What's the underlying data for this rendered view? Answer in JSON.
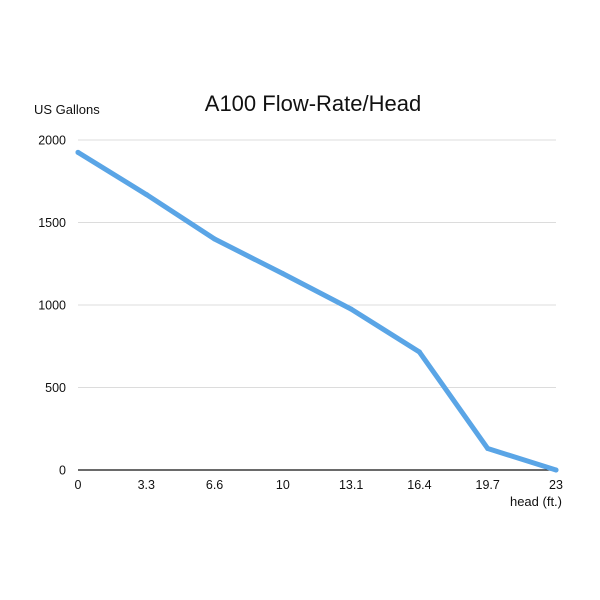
{
  "chart_data": {
    "type": "line",
    "title": "A100 Flow-Rate/Head",
    "ylabel": "US Gallons",
    "xlabel": "head (ft.)",
    "categories": [
      "0",
      "3.3",
      "6.6",
      "10",
      "13.1",
      "16.4",
      "19.7",
      "23"
    ],
    "series": [
      {
        "values": [
          1925,
          1670,
          1400,
          1190,
          975,
          715,
          130,
          0
        ]
      }
    ],
    "ylim": [
      0,
      2000
    ],
    "yticks": [
      0,
      500,
      1000,
      1500,
      2000
    ],
    "grid": true,
    "line_color": "#5aa5e6"
  }
}
